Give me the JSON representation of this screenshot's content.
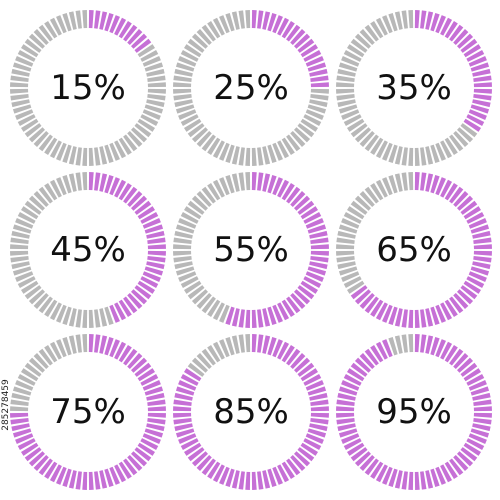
{
  "colors": {
    "filled": "#c670d6",
    "empty": "#b8b8b8",
    "text": "#111111"
  },
  "ring_segments": 72,
  "rings": [
    {
      "label": "15%",
      "fraction": 0.15
    },
    {
      "label": "25%",
      "fraction": 0.25
    },
    {
      "label": "35%",
      "fraction": 0.35
    },
    {
      "label": "45%",
      "fraction": 0.45
    },
    {
      "label": "55%",
      "fraction": 0.55
    },
    {
      "label": "65%",
      "fraction": 0.65
    },
    {
      "label": "75%",
      "fraction": 0.75
    },
    {
      "label": "85%",
      "fraction": 0.85
    },
    {
      "label": "95%",
      "fraction": 0.95
    }
  ],
  "stock_id": "285278459"
}
